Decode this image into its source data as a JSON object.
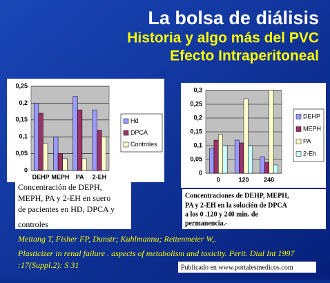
{
  "slide": {
    "title": "La bolsa de diálisis",
    "subtitle": [
      "Historia y algo más del PVC",
      "Efecto Intraperitoneal"
    ],
    "caption_left": [
      "Concentración de DEPH,",
      "MEPH, PA y 2-EH en suero",
      "de pacientes en HD, DPCA y",
      "controles"
    ],
    "caption_right": [
      "Concentraciones de DEHP, MEPH,",
      "PA y 2-EH en la solución de DPCA",
      "a los 0 .120  y 240 min. de",
      "permanencia.-"
    ],
    "references": [
      "Mettang T, Fisher FP, Dunstr; Kuhlmannu; Rettenmeier W,.",
      "Plasticizer in renal failure . aspects of metabolism and toxicity. Perit. Dial Int 1997",
      ":17(Suppl.2): S 31"
    ],
    "footer": "Publicado en www.portalesmedicos.com"
  },
  "chart_data": [
    {
      "type": "bar",
      "categories": [
        "DEHP",
        "MEPH",
        "PA",
        "2-EH"
      ],
      "series": [
        {
          "name": "Hd",
          "color": "#9999ff",
          "values": [
            0.2,
            0.1,
            0.22,
            0.18
          ]
        },
        {
          "name": "DPCA",
          "color": "#993366",
          "values": [
            0.17,
            0.05,
            0.18,
            0.12
          ]
        },
        {
          "name": "Controles",
          "color": "#ffffcc",
          "values": [
            0.08,
            0.035,
            0.035,
            0.1
          ]
        }
      ],
      "ylim": [
        0,
        0.25
      ],
      "yticks": [
        0,
        {
          "value": 0.05,
          "label": "0,05"
        },
        {
          "value": 0.1,
          "label": "0,1"
        },
        {
          "value": 0.15,
          "label": "0,15"
        },
        {
          "value": 0.2,
          "label": "0,2"
        },
        {
          "value": 0.25,
          "label": "0,25"
        }
      ],
      "grid": true,
      "legend": "right"
    },
    {
      "type": "bar",
      "categories": [
        "0",
        "120",
        "240"
      ],
      "series": [
        {
          "name": "DEHP",
          "color": "#9999ff",
          "values": [
            0.09,
            0.12,
            0.06
          ]
        },
        {
          "name": "MEPH",
          "color": "#993366",
          "values": [
            0.12,
            0.11,
            0.04
          ]
        },
        {
          "name": "PA",
          "color": "#ffffcc",
          "values": [
            0.14,
            0.27,
            0.3
          ]
        },
        {
          "name": "2-Eh",
          "color": "#ccffff",
          "values": [
            0.1,
            0.1,
            0.03
          ]
        }
      ],
      "ylim": [
        0,
        0.3
      ],
      "yticks": [
        0,
        {
          "value": 0.05,
          "label": "0,05"
        },
        {
          "value": 0.1,
          "label": "0,1"
        },
        {
          "value": 0.15,
          "label": "0,15"
        },
        {
          "value": 0.2,
          "label": "0,2"
        },
        {
          "value": 0.25,
          "label": "0,25"
        },
        {
          "value": 0.3,
          "label": "0,3"
        }
      ],
      "grid": true,
      "legend": "right"
    }
  ]
}
